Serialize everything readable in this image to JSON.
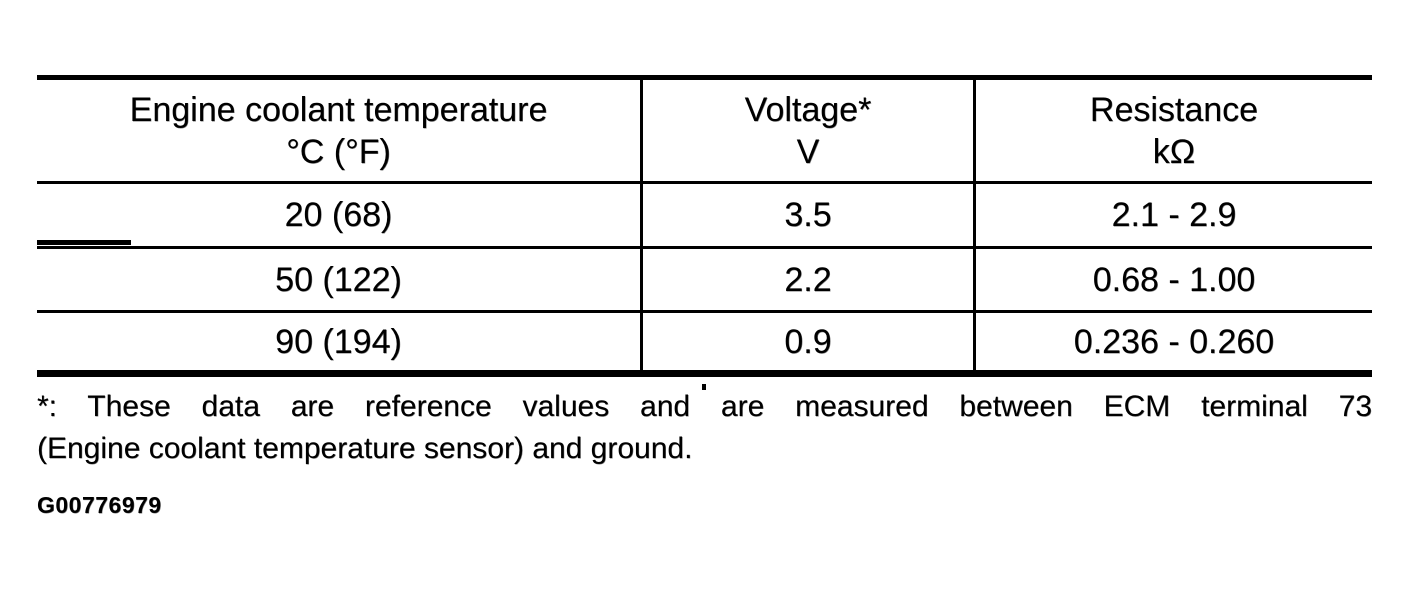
{
  "table": {
    "columns": [
      {
        "header_line1": "Engine coolant temperature",
        "header_line2": "°C (°F)"
      },
      {
        "header_line1": "Voltage*",
        "header_line2": "V"
      },
      {
        "header_line1": "Resistance",
        "header_line2": "kΩ"
      }
    ],
    "rows": [
      [
        "20 (68)",
        "3.5",
        "2.1 - 2.9"
      ],
      [
        "50 (122)",
        "2.2",
        "0.68 - 1.00"
      ],
      [
        "90 (194)",
        "0.9",
        "0.236 - 0.260"
      ]
    ]
  },
  "footnote": {
    "line1": "*: These data are reference values and are measured between ECM terminal 73",
    "line2": "(Engine coolant temperature sensor) and ground."
  },
  "figure_id": "G00776979",
  "colors": {
    "ink": "#000000",
    "paper": "#ffffff"
  }
}
